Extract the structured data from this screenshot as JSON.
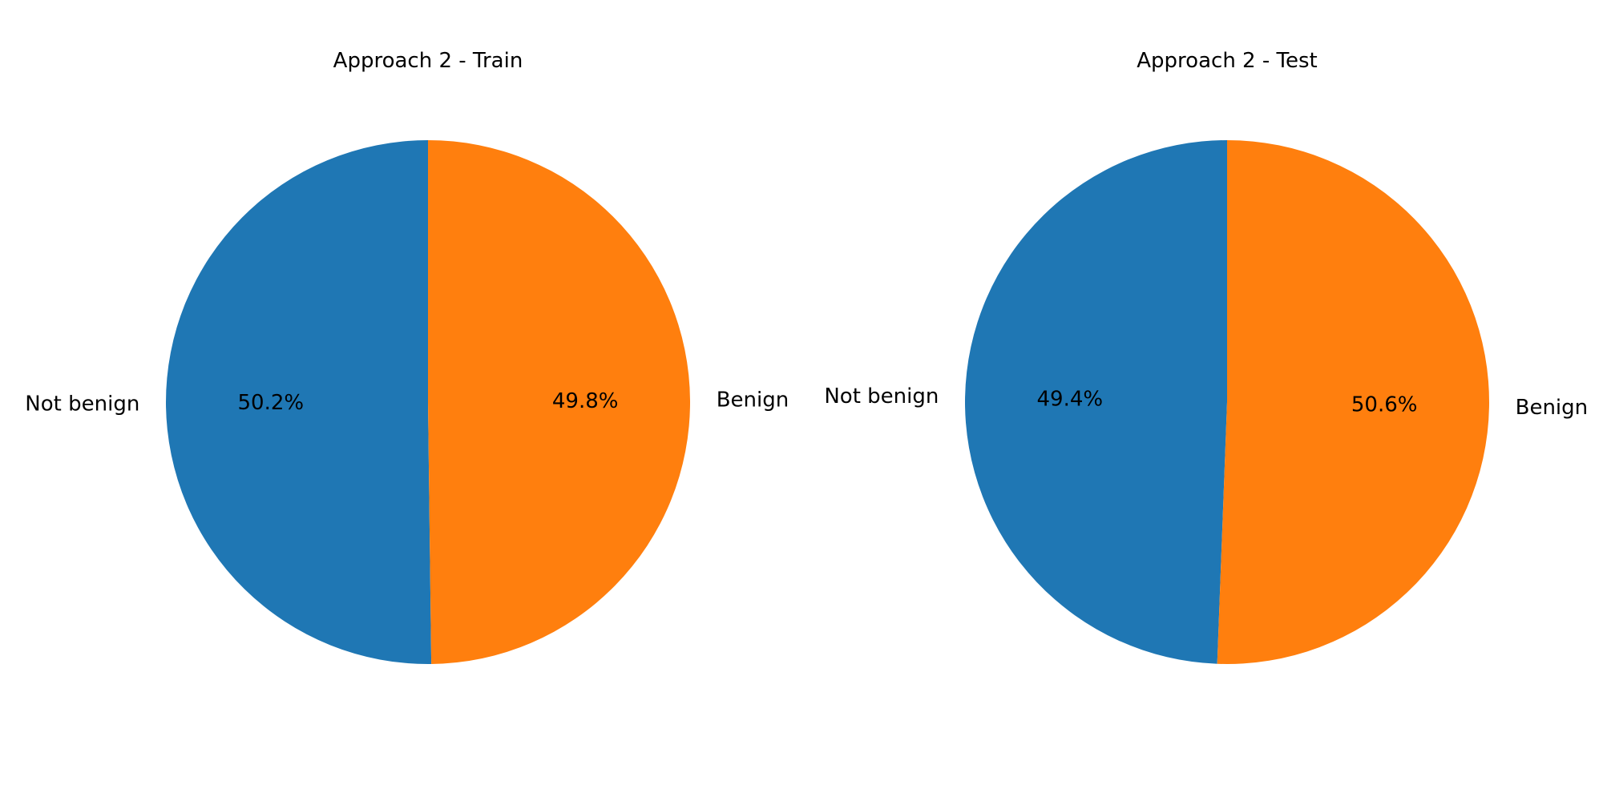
{
  "chart_data": [
    {
      "type": "pie",
      "title": "Approach 2 - Train",
      "categories": [
        "Not benign",
        "Benign"
      ],
      "values": [
        50.2,
        49.8
      ],
      "percent_labels": [
        "50.2%",
        "49.8%"
      ],
      "colors": [
        "#1f77b4",
        "#ff7f0e"
      ]
    },
    {
      "type": "pie",
      "title": "Approach 2 - Test",
      "categories": [
        "Not benign",
        "Benign"
      ],
      "values": [
        49.4,
        50.6
      ],
      "percent_labels": [
        "49.4%",
        "50.6%"
      ],
      "colors": [
        "#1f77b4",
        "#ff7f0e"
      ]
    }
  ]
}
